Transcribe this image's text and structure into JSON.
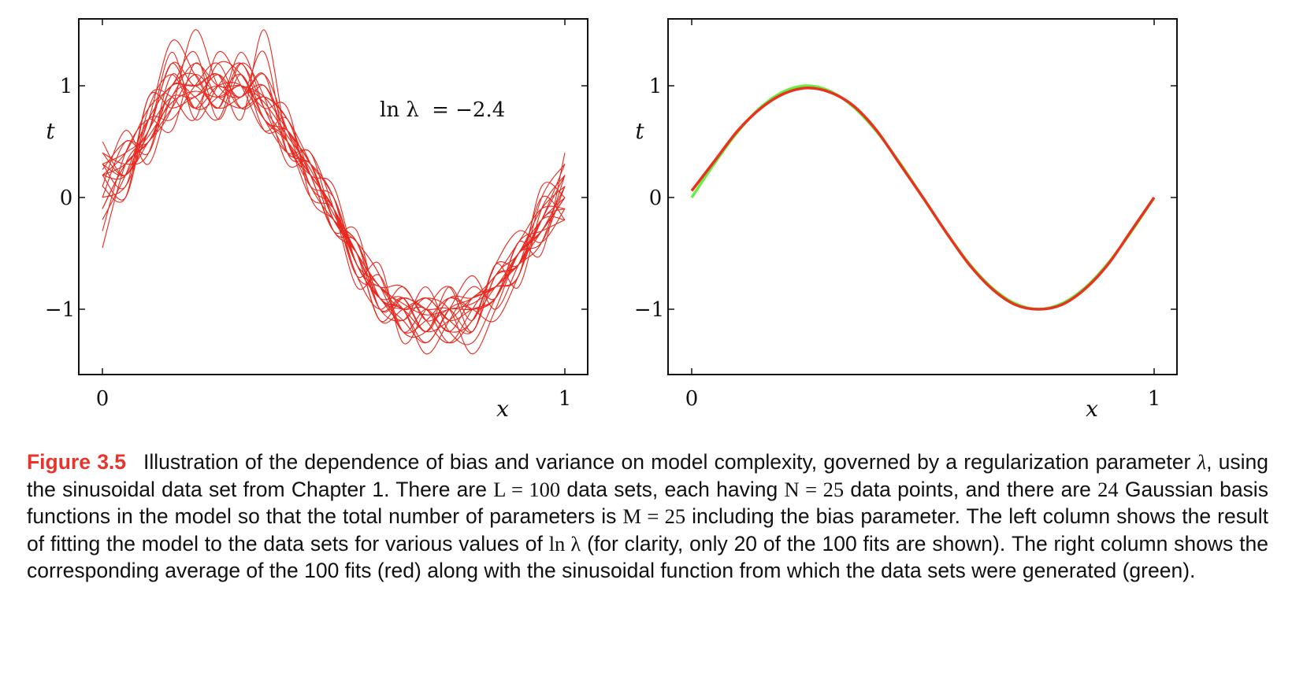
{
  "figure": {
    "left_panel": {
      "annotation_var": "ln λ",
      "annotation_eq": "= −2.4",
      "xlabel": "x",
      "ylabel": "t",
      "x_ticks": [
        "0",
        "1"
      ],
      "y_ticks": [
        "1",
        "0",
        "−1"
      ]
    },
    "right_panel": {
      "xlabel": "x",
      "ylabel": "t",
      "x_ticks": [
        "0",
        "1"
      ],
      "y_ticks": [
        "1",
        "0",
        "−1"
      ]
    }
  },
  "caption": {
    "label": "Figure 3.5",
    "s1": "Illustration of the dependence of bias and variance on model complexity, governed by a regularization parameter",
    "lambda1": "λ",
    "s2": ", using the sinusoidal data set from Chapter 1. There are",
    "L_eq": "L = 100",
    "s3": "data sets, each having",
    "N_eq": "N = 25",
    "s4": "data points, and there are",
    "n24": "24",
    "s5": "Gaussian basis functions in the model so that the total number of parameters is",
    "M_eq": "M = 25",
    "s6": "including the bias parameter. The left column shows the result of fitting the model to the data sets for various values of",
    "ln_lambda": "ln λ",
    "s7": "(for clarity, only 20 of the 100 fits are shown). The right column shows the corresponding average of the 100 fits (red) along with the sinusoidal function from which the data sets were generated (green)."
  },
  "chart_data": [
    {
      "type": "line",
      "panel": "left",
      "xlabel": "x",
      "ylabel": "t",
      "xlim": [
        -0.05,
        1.05
      ],
      "ylim": [
        -1.6,
        1.6
      ],
      "x_ticks": [
        0,
        1
      ],
      "y_ticks": [
        -1,
        0,
        1
      ],
      "annotation": "ln λ = −2.4",
      "series_color": "#e8281e",
      "x": [
        0,
        0.05,
        0.1,
        0.15,
        0.2,
        0.25,
        0.3,
        0.35,
        0.4,
        0.45,
        0.5,
        0.55,
        0.6,
        0.65,
        0.7,
        0.75,
        0.8,
        0.85,
        0.9,
        0.95,
        1
      ],
      "series": [
        {
          "values": [
            0.2,
            0.3,
            0.55,
            0.85,
            0.95,
            0.9,
            1.0,
            0.85,
            0.55,
            0.25,
            -0.15,
            -0.5,
            -0.8,
            -0.95,
            -1.05,
            -1.0,
            -0.95,
            -0.8,
            -0.6,
            -0.3,
            0.0
          ]
        },
        {
          "values": [
            0.5,
            0.2,
            0.7,
            1.4,
            1.1,
            0.8,
            1.2,
            0.7,
            0.6,
            0.3,
            0.0,
            -0.6,
            -0.9,
            -1.1,
            -0.8,
            -1.2,
            -1.3,
            -0.9,
            -0.5,
            -0.4,
            0.1
          ]
        },
        {
          "values": [
            -0.1,
            0.3,
            0.5,
            0.8,
            1.5,
            1.0,
            0.9,
            1.1,
            0.4,
            0.4,
            -0.2,
            -0.4,
            -1.0,
            -0.9,
            -1.2,
            -0.9,
            -1.0,
            -1.1,
            -0.7,
            -0.2,
            -0.1
          ]
        },
        {
          "values": [
            0.3,
            0.1,
            0.9,
            0.9,
            0.7,
            1.3,
            1.0,
            0.6,
            0.7,
            0.1,
            -0.1,
            -0.7,
            -0.6,
            -1.3,
            -1.0,
            -0.8,
            -1.2,
            -0.6,
            -0.8,
            -0.1,
            0.2
          ]
        },
        {
          "values": [
            0.0,
            0.5,
            0.4,
            1.0,
            0.9,
            0.7,
            1.2,
            0.9,
            0.3,
            0.3,
            -0.3,
            -0.4,
            -0.9,
            -1.0,
            -1.4,
            -1.1,
            -0.8,
            -0.9,
            -0.4,
            -0.5,
            0.4
          ]
        },
        {
          "values": [
            0.4,
            0.2,
            0.6,
            1.2,
            1.0,
            1.1,
            0.7,
            1.5,
            0.5,
            0.2,
            0.1,
            -0.6,
            -0.8,
            -0.8,
            -1.1,
            -1.3,
            -1.0,
            -0.7,
            -0.6,
            -0.2,
            -0.2
          ]
        },
        {
          "values": [
            -0.3,
            0.4,
            0.7,
            0.6,
            1.2,
            0.9,
            1.0,
            0.8,
            0.8,
            0.0,
            -0.2,
            -0.5,
            -1.1,
            -1.0,
            -0.9,
            -1.0,
            -1.4,
            -1.0,
            -0.5,
            -0.3,
            0.0
          ]
        },
        {
          "values": [
            0.2,
            0.0,
            0.8,
            1.1,
            0.8,
            1.2,
            1.1,
            0.7,
            0.4,
            0.4,
            -0.1,
            -0.8,
            -0.7,
            -1.2,
            -1.2,
            -0.9,
            -0.9,
            -0.8,
            -0.7,
            0.0,
            0.3
          ]
        },
        {
          "values": [
            0.1,
            0.6,
            0.3,
            0.9,
            1.0,
            0.8,
            0.9,
            1.0,
            0.6,
            0.2,
            -0.3,
            -0.3,
            -1.0,
            -0.9,
            -1.0,
            -1.2,
            -1.1,
            -0.6,
            -0.3,
            -0.4,
            -0.1
          ]
        },
        {
          "values": [
            -0.45,
            0.3,
            0.6,
            1.3,
            0.7,
            1.0,
            1.2,
            0.8,
            0.5,
            0.1,
            0.0,
            -0.6,
            -0.9,
            -1.1,
            -1.3,
            -1.0,
            -0.7,
            -1.0,
            -0.6,
            -0.2,
            0.2
          ]
        },
        {
          "values": [
            0.3,
            0.2,
            0.5,
            0.8,
            1.1,
            0.9,
            0.8,
            0.9,
            0.7,
            0.3,
            -0.2,
            -0.5,
            -0.8,
            -1.0,
            -0.9,
            -1.1,
            -1.2,
            -0.7,
            -0.5,
            -0.1,
            0.1
          ]
        },
        {
          "values": [
            0.2,
            0.4,
            0.8,
            1.0,
            1.3,
            0.7,
            1.1,
            0.6,
            0.6,
            0.2,
            -0.1,
            -0.7,
            -1.0,
            -0.8,
            -1.1,
            -1.0,
            -1.0,
            -0.9,
            -0.4,
            -0.3,
            -0.2
          ]
        },
        {
          "values": [
            0.0,
            0.1,
            0.6,
            0.9,
            0.9,
            1.1,
            0.9,
            1.3,
            0.4,
            0.3,
            -0.2,
            -0.4,
            -0.7,
            -1.2,
            -1.0,
            -1.2,
            -0.9,
            -0.8,
            -0.7,
            0.1,
            0.0
          ]
        },
        {
          "values": [
            0.4,
            0.3,
            0.4,
            1.1,
            0.8,
            1.0,
            1.0,
            0.7,
            0.5,
            0.0,
            -0.1,
            -0.6,
            -0.9,
            -0.9,
            -1.2,
            -0.8,
            -1.1,
            -0.6,
            -0.6,
            -0.2,
            0.3
          ]
        },
        {
          "values": [
            -0.2,
            0.2,
            0.7,
            0.7,
            1.0,
            1.2,
            0.8,
            0.9,
            0.7,
            0.2,
            -0.3,
            -0.5,
            -1.0,
            -1.1,
            -0.9,
            -1.1,
            -1.0,
            -0.9,
            -0.5,
            -0.3,
            0.1
          ]
        },
        {
          "values": [
            0.25,
            0.5,
            0.5,
            1.0,
            1.1,
            0.8,
            1.3,
            0.8,
            0.4,
            0.3,
            0.0,
            -0.7,
            -0.8,
            -1.0,
            -1.3,
            -1.0,
            -0.9,
            -0.7,
            -0.4,
            -0.1,
            -0.1
          ]
        },
        {
          "values": [
            0.1,
            0.0,
            0.9,
            0.8,
            0.9,
            1.0,
            0.9,
            1.1,
            0.6,
            0.1,
            -0.2,
            -0.4,
            -0.9,
            -1.0,
            -1.0,
            -1.3,
            -1.1,
            -0.8,
            -0.6,
            -0.4,
            0.2
          ]
        },
        {
          "values": [
            0.3,
            0.4,
            0.6,
            1.2,
            0.8,
            0.9,
            1.1,
            0.7,
            0.5,
            0.2,
            -0.1,
            -0.6,
            -0.8,
            -1.2,
            -1.1,
            -0.9,
            -1.0,
            -0.9,
            -0.5,
            -0.2,
            0.0
          ]
        },
        {
          "values": [
            -0.1,
            0.3,
            0.5,
            0.9,
            1.2,
            1.0,
            1.0,
            0.9,
            0.6,
            0.3,
            -0.2,
            -0.5,
            -1.1,
            -0.9,
            -1.0,
            -1.0,
            -1.2,
            -0.7,
            -0.6,
            0.0,
            -0.2
          ]
        },
        {
          "values": [
            0.2,
            0.2,
            0.7,
            1.0,
            1.0,
            1.1,
            0.8,
            1.0,
            0.5,
            0.2,
            -0.1,
            -0.5,
            -0.9,
            -1.0,
            -1.2,
            -1.1,
            -0.9,
            -0.8,
            -0.5,
            -0.3,
            0.1
          ]
        }
      ]
    },
    {
      "type": "line",
      "panel": "right",
      "xlabel": "x",
      "ylabel": "t",
      "xlim": [
        -0.05,
        1.05
      ],
      "ylim": [
        -1.6,
        1.6
      ],
      "x_ticks": [
        0,
        1
      ],
      "y_ticks": [
        -1,
        0,
        1
      ],
      "x": [
        0,
        0.05,
        0.1,
        0.15,
        0.2,
        0.25,
        0.3,
        0.35,
        0.4,
        0.45,
        0.5,
        0.55,
        0.6,
        0.65,
        0.7,
        0.75,
        0.8,
        0.85,
        0.9,
        0.95,
        1
      ],
      "series": [
        {
          "color": "#66ee44",
          "values": [
            0.0,
            0.31,
            0.59,
            0.81,
            0.95,
            1.0,
            0.95,
            0.81,
            0.59,
            0.31,
            0.0,
            -0.31,
            -0.59,
            -0.81,
            -0.95,
            -1.0,
            -0.95,
            -0.81,
            -0.59,
            -0.31,
            0.0
          ]
        },
        {
          "color": "#e8341e",
          "values": [
            0.06,
            0.33,
            0.6,
            0.8,
            0.93,
            0.98,
            0.94,
            0.82,
            0.6,
            0.3,
            0.0,
            -0.31,
            -0.6,
            -0.82,
            -0.96,
            -1.0,
            -0.96,
            -0.82,
            -0.6,
            -0.3,
            0.0
          ]
        }
      ]
    }
  ]
}
